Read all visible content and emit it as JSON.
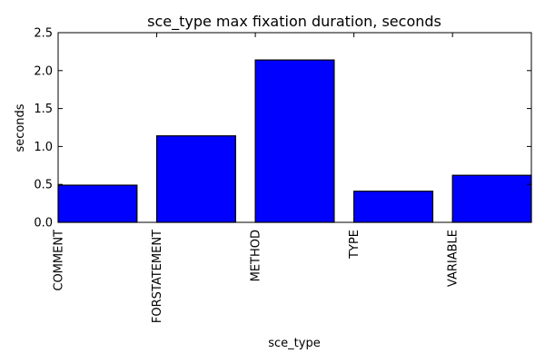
{
  "chart_data": {
    "type": "bar",
    "title": "sce_type max fixation duration, seconds",
    "xlabel": "sce_type",
    "ylabel": "seconds",
    "categories": [
      "COMMENT",
      "FORSTATEMENT",
      "METHOD",
      "TYPE",
      "VARIABLE"
    ],
    "values": [
      0.49,
      1.14,
      2.14,
      0.41,
      0.62
    ],
    "ylim": [
      0,
      2.5
    ],
    "yticks": [
      "0.0",
      "0.5",
      "1.0",
      "1.5",
      "2.0",
      "2.5"
    ],
    "bar_color": "#0000ff",
    "edge_color": "#000000",
    "grid": false
  }
}
